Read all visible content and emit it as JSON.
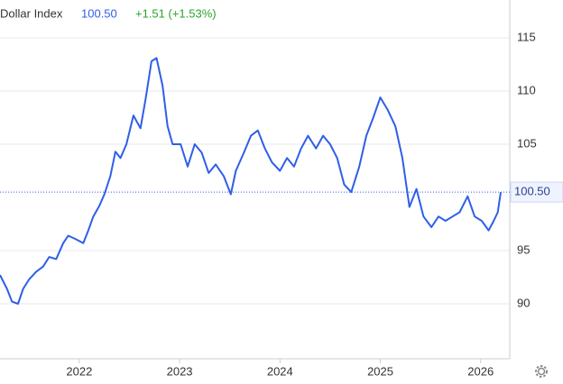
{
  "header": {
    "name": "Dollar Index",
    "change": "+1.51 (+1.53%)"
  },
  "chart_data": {
    "type": "line",
    "x": [
      2021.21,
      2021.28,
      2021.33,
      2021.39,
      2021.44,
      2021.5,
      2021.57,
      2021.64,
      2021.7,
      2021.77,
      2021.84,
      2021.89,
      2021.96,
      2022.04,
      2022.09,
      2022.14,
      2022.2,
      2022.25,
      2022.31,
      2022.36,
      2022.41,
      2022.47,
      2022.54,
      2022.61,
      2022.66,
      2022.72,
      2022.77,
      2022.83,
      2022.88,
      2022.93,
      2023.01,
      2023.08,
      2023.15,
      2023.22,
      2023.29,
      2023.36,
      2023.44,
      2023.51,
      2023.56,
      2023.64,
      2023.71,
      2023.78,
      2023.85,
      2023.92,
      2024.0,
      2024.07,
      2024.14,
      2024.21,
      2024.28,
      2024.36,
      2024.43,
      2024.5,
      2024.57,
      2024.64,
      2024.71,
      2024.79,
      2024.86,
      2024.93,
      2025.0,
      2025.07,
      2025.15,
      2025.22,
      2025.29,
      2025.36,
      2025.43,
      2025.51,
      2025.58,
      2025.65,
      2025.72,
      2025.79,
      2025.87,
      2025.94,
      2026.01,
      2026.08,
      2026.13,
      2026.17,
      2026.2
    ],
    "series": [
      {
        "name": "Dollar Index",
        "color": "#2f5ee8",
        "values": [
          92.7,
          91.4,
          90.2,
          90.0,
          91.4,
          92.3,
          93.0,
          93.5,
          94.4,
          94.2,
          95.7,
          96.4,
          96.1,
          95.7,
          96.9,
          98.2,
          99.2,
          100.3,
          102.0,
          104.3,
          103.7,
          105.0,
          107.7,
          106.5,
          109.2,
          112.8,
          113.1,
          110.5,
          106.7,
          105.0,
          105.0,
          102.9,
          105.0,
          104.2,
          102.3,
          103.1,
          102.0,
          100.3,
          102.5,
          104.2,
          105.8,
          106.3,
          104.6,
          103.3,
          102.5,
          103.7,
          102.9,
          104.6,
          105.8,
          104.6,
          105.8,
          105.0,
          103.7,
          101.2,
          100.5,
          102.9,
          105.8,
          107.5,
          109.4,
          108.3,
          106.7,
          103.7,
          99.1,
          100.8,
          98.2,
          97.2,
          98.2,
          97.8,
          98.2,
          98.6,
          100.1,
          98.2,
          97.8,
          96.9,
          97.8,
          98.6,
          100.5
        ]
      }
    ],
    "current": {
      "value": 100.5,
      "label": "100.50"
    },
    "xlim": [
      2021.21,
      2026.29
    ],
    "xticks": [
      2022,
      2023,
      2024,
      2025,
      2026
    ],
    "ylim": [
      84.83,
      118.56
    ],
    "yticks": [
      90,
      95,
      105,
      110,
      115
    ],
    "grid": true
  }
}
